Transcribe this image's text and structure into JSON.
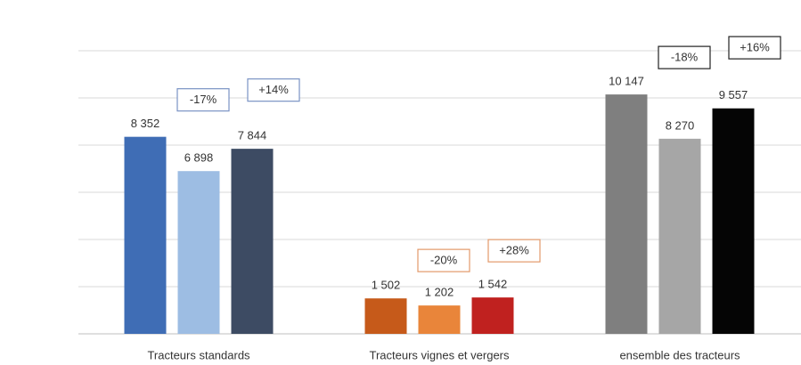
{
  "chart_data": {
    "type": "bar",
    "categories": [
      "Tracteurs standards",
      "Tracteurs vignes et vergers",
      "ensemble des tracteurs"
    ],
    "series": [
      {
        "colors": [
          "#3f6db5",
          "#c65a1a",
          "#7f7f7f"
        ],
        "values": [
          8352,
          1502,
          10147
        ],
        "value_labels": [
          "8 352",
          "1 502",
          "10 147"
        ]
      },
      {
        "colors": [
          "#9dbde3",
          "#e9853a",
          "#a6a6a6"
        ],
        "values": [
          6898,
          1202,
          8270
        ],
        "value_labels": [
          "6 898",
          "1 202",
          "8 270"
        ]
      },
      {
        "colors": [
          "#3d4b63",
          "#c0211f",
          "#050505"
        ],
        "values": [
          7844,
          1542,
          9557
        ],
        "value_labels": [
          "7 844",
          "1 542",
          "9 557"
        ]
      }
    ],
    "annotations": [
      {
        "color": "#7a93c4",
        "texts": [
          "-17%",
          "+14%"
        ]
      },
      {
        "color": "#e39a6a",
        "texts": [
          "-20%",
          "+28%"
        ]
      },
      {
        "color": "#222222",
        "texts": [
          "-18%",
          "+16%"
        ]
      }
    ],
    "ylim": [
      0,
      12000
    ],
    "yticks": [
      0,
      2000,
      4000,
      6000,
      8000,
      10000,
      12000
    ],
    "grid": true
  }
}
